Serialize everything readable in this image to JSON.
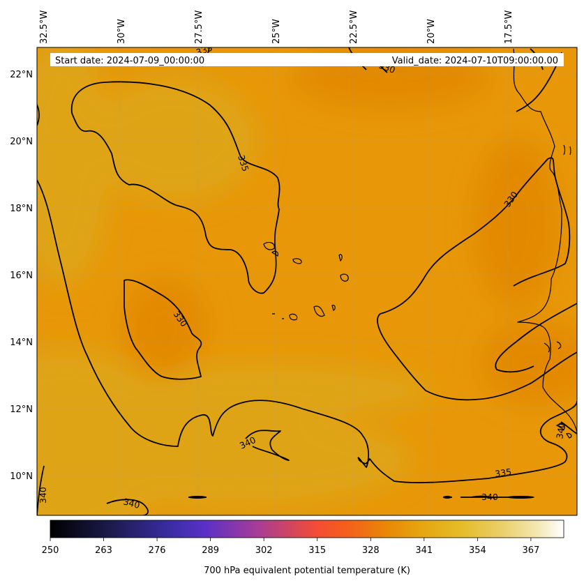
{
  "header": {
    "start_label": "Start date: 2024-07-09_00:00:00",
    "valid_label": "Valid_date: 2024-07-10T09:00:00.00"
  },
  "map": {
    "lon_ticks": [
      "32.5°W",
      "30°W",
      "27.5°W",
      "25°W",
      "22.5°W",
      "20°W",
      "17.5°W"
    ],
    "lat_ticks": [
      "22°N",
      "20°N",
      "18°N",
      "16°N",
      "14°N",
      "12°N",
      "10°N"
    ],
    "contour_labels": [
      "335",
      "330",
      "330",
      "340",
      "335",
      "340",
      "340",
      "340",
      "335",
      "330",
      "340"
    ],
    "colors": {
      "field_base": "#e79708",
      "field_warm": "#dfa412",
      "field_cool": "#e38904",
      "contour": "#000000",
      "coast": "#000000"
    }
  },
  "colorbar": {
    "tick_labels": [
      "250",
      "263",
      "276",
      "289",
      "302",
      "315",
      "328",
      "341",
      "354",
      "367"
    ],
    "label": "700 hPa equivalent potential temperature (K)",
    "range": [
      250,
      375
    ],
    "colormap": "CMRmap"
  }
}
